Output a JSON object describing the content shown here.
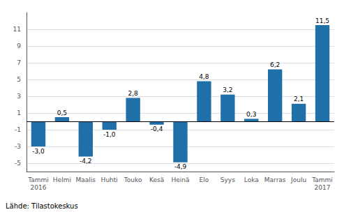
{
  "chart_data": {
    "type": "bar",
    "categories": [
      "Tammi\n2016",
      "Helmi",
      "Maalis",
      "Huhti",
      "Touko",
      "Kesä",
      "Heinä",
      "Elo",
      "Syys",
      "Loka",
      "Marras",
      "Joulu",
      "Tammi\n2017"
    ],
    "values": [
      -3.0,
      0.5,
      -4.2,
      -1.0,
      2.8,
      -0.4,
      -4.9,
      4.8,
      3.2,
      0.3,
      6.2,
      2.1,
      11.5
    ],
    "value_labels": [
      "-3,0",
      "0,5",
      "-4,2",
      "-1,0",
      "2,8",
      "-0,4",
      "-4,9",
      "4,8",
      "3,2",
      "0,3",
      "6,2",
      "2,1",
      "11,5"
    ],
    "data_labels": true,
    "color": "#1f6fa8",
    "ylim": [
      -6,
      13
    ],
    "yticks": [
      -5,
      -3,
      -1,
      1,
      3,
      5,
      7,
      9,
      11
    ],
    "grid": true,
    "annotations": [
      "Lähde: Tilastokeskus"
    ]
  }
}
